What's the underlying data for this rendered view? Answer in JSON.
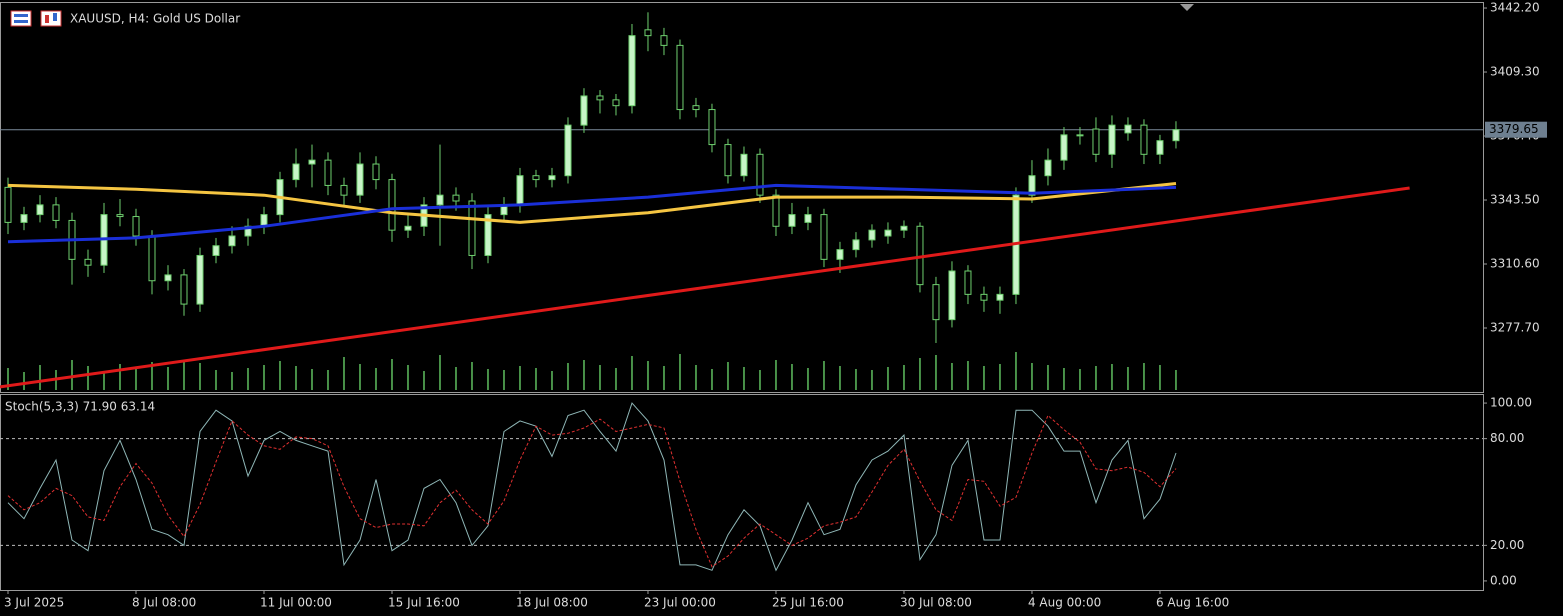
{
  "chart_data": [
    {
      "type": "candlestick",
      "title": "XAUUSD, H4:  Gold US Dollar",
      "xlim": [
        -0.5,
        92.19
      ],
      "xticks": [
        {
          "value": 0,
          "label": "3 Jul 2025"
        },
        {
          "value": 8,
          "label": "8 Jul 08:00"
        },
        {
          "value": 16,
          "label": "11 Jul 00:00"
        },
        {
          "value": 24,
          "label": "15 Jul 16:00"
        },
        {
          "value": 32,
          "label": "18 Jul 08:00"
        },
        {
          "value": 40,
          "label": "23 Jul 00:00"
        },
        {
          "value": 48,
          "label": "25 Jul 16:00"
        },
        {
          "value": 56,
          "label": "30 Jul 08:00"
        },
        {
          "value": 64,
          "label": "4 Aug 00:00"
        },
        {
          "value": 72,
          "label": "6 Aug 16:00"
        }
      ],
      "ylim": [
        3244.8,
        3445.3
      ],
      "yticks": [
        {
          "value": 3442.2,
          "label": "3442.20"
        },
        {
          "value": 3409.3,
          "label": "3409.30"
        },
        {
          "value": 3376.4,
          "label": "3376.40"
        },
        {
          "value": 3343.5,
          "label": "3343.50"
        },
        {
          "value": 3310.6,
          "label": "3310.60"
        },
        {
          "value": 3277.7,
          "label": "3277.70"
        }
      ],
      "last_price": 3379.65,
      "bull_color": "#c8f5c8",
      "bear_color": "#000000",
      "candle_outline": "#6fd06f",
      "volume_color": "#5fbf5f",
      "open": [
        3350,
        3332,
        3336,
        3341,
        3333,
        3313,
        3310,
        3336,
        3335,
        3325,
        3302,
        3305,
        3290,
        3315,
        3320,
        3325,
        3330,
        3336,
        3354,
        3362,
        3364,
        3351,
        3346,
        3362,
        3354,
        3328,
        3330,
        3341,
        3346,
        3343,
        3315,
        3336,
        3341,
        3356,
        3354,
        3356,
        3382,
        3397,
        3395,
        3392,
        3431,
        3428,
        3423,
        3392,
        3390,
        3372,
        3356,
        3367,
        3346,
        3330,
        3332,
        3336,
        3313,
        3318,
        3323,
        3325,
        3328,
        3330,
        3300,
        3282,
        3307,
        3295,
        3292,
        3295,
        3346,
        3356,
        3364,
        3377,
        3380,
        3367,
        3378,
        3382,
        3367,
        3374
      ],
      "high": [
        3355,
        3340,
        3346,
        3345,
        3337,
        3318,
        3342,
        3344,
        3339,
        3328,
        3310,
        3308,
        3319,
        3324,
        3330,
        3334,
        3340,
        3358,
        3370,
        3372,
        3368,
        3355,
        3368,
        3366,
        3357,
        3336,
        3345,
        3372,
        3350,
        3347,
        3340,
        3345,
        3360,
        3359,
        3360,
        3386,
        3401,
        3400,
        3398,
        3434,
        3440,
        3432,
        3426,
        3396,
        3393,
        3375,
        3371,
        3370,
        3349,
        3342,
        3340,
        3339,
        3322,
        3327,
        3331,
        3332,
        3333,
        3332,
        3304,
        3312,
        3310,
        3299,
        3299,
        3350,
        3364,
        3370,
        3381,
        3381,
        3386,
        3387,
        3386,
        3385,
        3377,
        3384
      ],
      "low": [
        3326,
        3328,
        3332,
        3329,
        3300,
        3304,
        3306,
        3330,
        3320,
        3295,
        3297,
        3284,
        3286,
        3311,
        3316,
        3320,
        3326,
        3332,
        3350,
        3350,
        3346,
        3340,
        3342,
        3349,
        3322,
        3324,
        3325,
        3320,
        3338,
        3308,
        3311,
        3332,
        3337,
        3350,
        3350,
        3352,
        3378,
        3388,
        3387,
        3388,
        3420,
        3418,
        3385,
        3386,
        3368,
        3352,
        3353,
        3342,
        3325,
        3326,
        3328,
        3309,
        3306,
        3314,
        3319,
        3321,
        3324,
        3296,
        3270,
        3278,
        3290,
        3286,
        3285,
        3290,
        3342,
        3351,
        3359,
        3372,
        3363,
        3360,
        3374,
        3362,
        3362,
        3370
      ],
      "close": [
        3332,
        3336,
        3341,
        3333,
        3313,
        3310,
        3336,
        3335,
        3325,
        3302,
        3305,
        3290,
        3315,
        3320,
        3325,
        3330,
        3336,
        3354,
        3362,
        3364,
        3351,
        3346,
        3362,
        3354,
        3328,
        3330,
        3341,
        3346,
        3343,
        3315,
        3336,
        3341,
        3356,
        3354,
        3356,
        3382,
        3397,
        3395,
        3392,
        3428,
        3428,
        3423,
        3390,
        3390,
        3372,
        3356,
        3367,
        3346,
        3330,
        3336,
        3336,
        3313,
        3318,
        3323,
        3328,
        3328,
        3330,
        3300,
        3282,
        3307,
        3295,
        3292,
        3295,
        3346,
        3356,
        3364,
        3377,
        3377,
        3367,
        3382,
        3382,
        3367,
        3374,
        3379.65
      ],
      "volumes": [
        22,
        18,
        25,
        20,
        30,
        24,
        19,
        26,
        21,
        28,
        23,
        30,
        27,
        20,
        18,
        22,
        25,
        29,
        24,
        21,
        20,
        33,
        26,
        22,
        31,
        25,
        19,
        35,
        23,
        28,
        21,
        20,
        24,
        22,
        19,
        27,
        30,
        25,
        22,
        34,
        29,
        24,
        36,
        25,
        21,
        28,
        23,
        20,
        30,
        26,
        22,
        29,
        24,
        21,
        20,
        23,
        25,
        32,
        35,
        27,
        29,
        24,
        26,
        38,
        27,
        25,
        22,
        21,
        24,
        26,
        23,
        27,
        25,
        20
      ],
      "series": [
        {
          "name": "MA yellow",
          "color": "#f5c542",
          "x": [
            0,
            8,
            16,
            24,
            32,
            40,
            48,
            56,
            64,
            73
          ],
          "values": [
            3351,
            3349,
            3346,
            3337,
            3332,
            3337,
            3345,
            3345,
            3344,
            3352
          ]
        },
        {
          "name": "MA blue",
          "color": "#1a2fd8",
          "x": [
            0,
            8,
            16,
            24,
            32,
            40,
            48,
            56,
            64,
            73
          ],
          "values": [
            3322,
            3324,
            3330,
            3339,
            3341,
            3345,
            3351,
            3349,
            3347,
            3350
          ]
        },
        {
          "name": "Trendline",
          "color": "#e01a1a",
          "x": [
            -0.5,
            87.6
          ],
          "values": [
            3247.4,
            3349.7
          ]
        }
      ]
    },
    {
      "type": "line",
      "title": "Stoch(5,3,3) 71.90 63.14",
      "xlim": [
        -0.5,
        92.19
      ],
      "ylim": [
        -5.1,
        105.1
      ],
      "yticks": [
        {
          "value": 100,
          "label": "100.00"
        },
        {
          "value": 80,
          "label": "80.00"
        },
        {
          "value": 20,
          "label": "20.00"
        },
        {
          "value": 0,
          "label": "0.00"
        }
      ],
      "levels": [
        80,
        20
      ],
      "series": [
        {
          "name": "Main",
          "color": "#8fb7b7",
          "dash": false,
          "values": [
            44,
            35,
            52,
            68,
            23,
            17,
            62,
            79,
            57,
            29,
            26,
            20,
            84,
            96,
            90,
            59,
            79,
            84,
            79,
            76,
            73,
            9,
            23,
            57,
            17,
            23,
            52,
            57,
            44,
            20,
            31,
            84,
            90,
            87,
            70,
            93,
            96,
            84,
            73,
            100,
            90,
            68,
            9,
            9,
            6,
            26,
            40,
            31,
            6,
            23,
            44,
            26,
            29,
            54,
            68,
            73,
            82,
            12,
            26,
            65,
            79,
            23,
            23,
            96,
            96,
            87,
            73,
            73,
            44,
            68,
            79,
            35,
            46,
            71.9
          ]
        },
        {
          "name": "Signal",
          "color": "#e03030",
          "dash": true,
          "values": [
            48,
            40,
            44,
            52,
            48,
            36,
            34,
            53,
            66,
            55,
            37,
            25,
            43,
            67,
            90,
            82,
            76,
            74,
            81,
            80,
            76,
            53,
            35,
            30,
            32,
            32,
            31,
            44,
            51,
            40,
            32,
            45,
            68,
            87,
            82,
            83,
            86,
            91,
            84,
            86,
            88,
            86,
            56,
            29,
            8,
            14,
            24,
            32,
            26,
            20,
            24,
            31,
            33,
            36,
            50,
            65,
            74,
            56,
            40,
            34,
            57,
            56,
            42,
            47,
            72,
            93,
            85,
            78,
            63,
            62,
            64,
            61,
            53,
            63.14
          ]
        }
      ]
    }
  ]
}
